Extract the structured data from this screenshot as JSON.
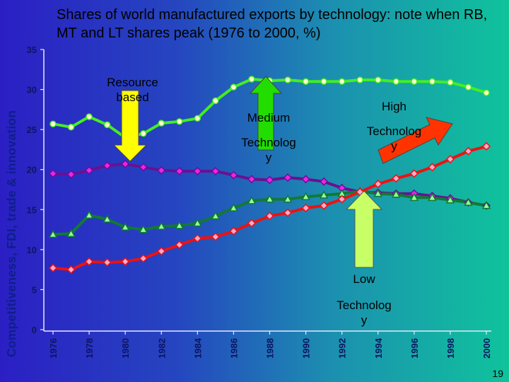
{
  "side_title": "Competitiveness, FDI, trade & innovation",
  "page_number": "19",
  "callouts": {
    "resource_based": [
      "Resource",
      "based"
    ],
    "medium": [
      "Medium",
      "Technolog",
      "y"
    ],
    "high": [
      "High",
      "Technolog",
      "y"
    ],
    "low": [
      "Low",
      "Technolog",
      "y"
    ]
  },
  "colors": {
    "background_left": "#2b1fc4",
    "background_right": "#0fc39c",
    "high_technology": "#ee1111",
    "medium_technology": "#44ee22",
    "resource_based": "#6a1090",
    "low_technology": "#117a33",
    "resource_arrow": "#ffff00",
    "medium_arrow": "#22dd00",
    "high_arrow": "#ff3300",
    "low_arrow": "#c8ff66"
  },
  "chart_data": {
    "type": "line",
    "title": "Shares of world manufactured exports by technology: note when RB, MT and LT shares peak (1976 to 2000, %)",
    "xlabel": "",
    "ylabel": "",
    "ylim": [
      0,
      35
    ],
    "yticks": [
      0,
      5,
      10,
      15,
      20,
      25,
      30,
      35
    ],
    "xticks": [
      1976,
      1978,
      1980,
      1982,
      1984,
      1986,
      1988,
      1990,
      1992,
      1994,
      1996,
      1998,
      2000
    ],
    "grid": false,
    "x": [
      1976,
      1977,
      1978,
      1979,
      1980,
      1981,
      1982,
      1983,
      1984,
      1985,
      1986,
      1987,
      1988,
      1989,
      1990,
      1991,
      1992,
      1993,
      1994,
      1995,
      1996,
      1997,
      1998,
      1999,
      2000
    ],
    "series": [
      {
        "key": "medium",
        "marker": "circle",
        "color": "#44ee22",
        "marker_fill": "#ffffcc",
        "values": [
          25.7,
          25.3,
          26.6,
          25.6,
          24.0,
          24.5,
          25.8,
          26.0,
          26.4,
          28.6,
          30.3,
          31.3,
          31.1,
          31.2,
          31.0,
          31.0,
          31.0,
          31.2,
          31.2,
          31.0,
          31.0,
          31.0,
          30.9,
          30.3,
          29.6
        ]
      },
      {
        "key": "resource_based",
        "marker": "diamond",
        "color": "#6a1090",
        "marker_fill": "#ee22ee",
        "values": [
          19.5,
          19.4,
          19.9,
          20.5,
          20.7,
          20.3,
          19.9,
          19.8,
          19.8,
          19.8,
          19.3,
          18.8,
          18.7,
          19.0,
          18.8,
          18.5,
          17.7,
          17.2,
          17.1,
          17.0,
          17.0,
          16.7,
          16.4,
          15.9,
          15.5
        ]
      },
      {
        "key": "low",
        "marker": "triangle",
        "color": "#117a33",
        "marker_fill": "#99ff99",
        "values": [
          11.9,
          12.0,
          14.3,
          13.8,
          12.8,
          12.5,
          12.9,
          13.0,
          13.3,
          14.2,
          15.2,
          16.1,
          16.3,
          16.3,
          16.6,
          16.8,
          17.0,
          17.3,
          17.0,
          16.9,
          16.5,
          16.5,
          16.2,
          15.9,
          15.5
        ]
      },
      {
        "key": "high",
        "marker": "diamond",
        "color": "#ee1111",
        "marker_fill": "#ffaacc",
        "values": [
          7.7,
          7.5,
          8.5,
          8.4,
          8.5,
          8.9,
          9.8,
          10.6,
          11.4,
          11.6,
          12.3,
          13.3,
          14.2,
          14.6,
          15.2,
          15.5,
          16.3,
          17.2,
          18.2,
          18.9,
          19.5,
          20.3,
          21.3,
          22.3,
          22.9
        ]
      }
    ]
  }
}
